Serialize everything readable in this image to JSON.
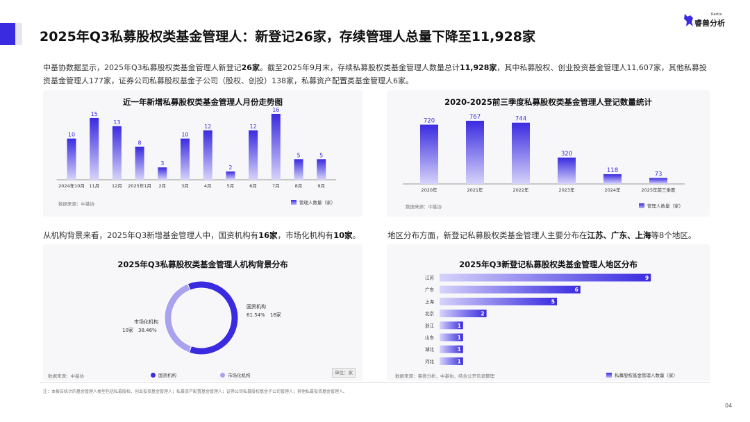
{
  "header": {
    "title": "2025年Q3私募股权类基金管理人：新登记26家，存续管理人总量下降至11,928家",
    "logo_text": "睿兽分析",
    "logo_small": "Rastia"
  },
  "intro": {
    "p1": "中基协数据显示，2025年Q3私募股权类基金管理人新登记",
    "b1": "26家",
    "p2": "。截至2025年9月末，存续私募股权类基金管理人数量总计",
    "b2": "11,928家",
    "p3": "，其中私募股权、创业投资基金管理人11,607家，其他私募投资基金管理人177家，证券公司私募股权基金子公司（股权、创投）138家，私募资产配置类基金管理人6家。"
  },
  "section2": {
    "p1": "从机构背景来看，2025年Q3新增基金管理人中，国资机构有",
    "b1": "16家",
    "p2": "，市场化机构有",
    "b2": "10家",
    "p3": "。"
  },
  "section3": {
    "p1": "地区分布方面，新登记私募股权类基金管理人主要分布在",
    "b1": "江苏、广东、上海",
    "p2": "等8个地区。"
  },
  "footnote": "注：本报告统计的基金管理人类型包括私募股权、创业投资基金管理人；私募资产配置基金管理人；证券公司私募股权基金子公司管理人；其他私募投资基金管理人。",
  "page_number": "04",
  "colors": {
    "accent": "#3a2be0",
    "light": "#a9a3ef"
  },
  "chart_data": [
    {
      "type": "bar",
      "title": "近一年新增私募股权类基金管理人月份走势图",
      "categories": [
        "2024年10月",
        "11月",
        "12月",
        "2025年1月",
        "2月",
        "3月",
        "4月",
        "5月",
        "6月",
        "7月",
        "8月",
        "9月"
      ],
      "series": [
        {
          "name": "管理人数量（家）",
          "values": [
            10,
            15,
            13,
            8,
            3,
            10,
            12,
            2,
            12,
            16,
            5,
            5
          ]
        }
      ],
      "source": "数据来源：中基协",
      "ylim": [
        0,
        16
      ]
    },
    {
      "type": "bar",
      "title": "2020-2025前三季度私募股权类基金管理人登记数量统计",
      "categories": [
        "2020年",
        "2021年",
        "2022年",
        "2023年",
        "2024年",
        "2025年前三季度"
      ],
      "series": [
        {
          "name": "管理人数量（家）",
          "values": [
            720,
            767,
            744,
            320,
            118,
            73
          ]
        }
      ],
      "source": "数据来源：中基协",
      "ylim": [
        0,
        767
      ]
    },
    {
      "type": "pie",
      "title": "2025年Q3私募股权类基金管理人机构背景分布",
      "slices": [
        {
          "name": "国资机构",
          "value": 16,
          "count_label": "16家",
          "percent": "61.54%"
        },
        {
          "name": "市场化机构",
          "value": 10,
          "count_label": "10家",
          "percent": "38.46%"
        }
      ],
      "source": "数据来源：中基协",
      "unit": "单位：家"
    },
    {
      "type": "bar",
      "orientation": "horizontal",
      "title": "2025年Q3新登记私募股权类基金管理人地区分布",
      "categories": [
        "江苏",
        "广东",
        "上海",
        "北京",
        "浙江",
        "山东",
        "湖北",
        "河北"
      ],
      "series": [
        {
          "name": "私募股权基金管理人数量（家）",
          "values": [
            9,
            6,
            5,
            2,
            1,
            1,
            1,
            1
          ]
        }
      ],
      "source": "数据来源：睿兽分析，中基协，结合公开信息整理"
    }
  ]
}
